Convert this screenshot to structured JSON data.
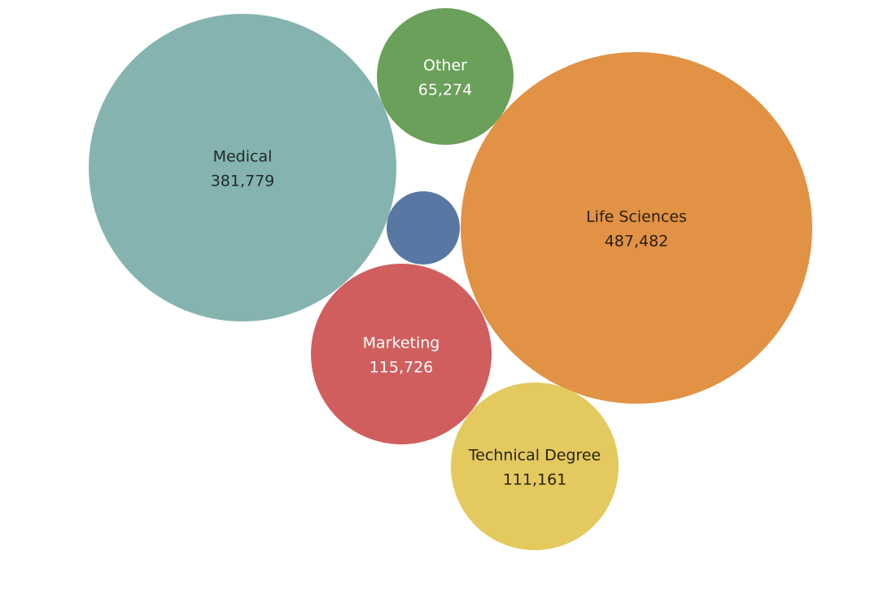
{
  "chart_data": {
    "type": "bubble",
    "title": "",
    "bubbles": [
      {
        "category": "Medical",
        "value": 381779,
        "value_label": "381,779",
        "color": "#85b4b0",
        "text_color": "#1f2a2a"
      },
      {
        "category": "Other",
        "value": 65274,
        "value_label": "65,274",
        "color": "#6aa05a",
        "text_color": "#ffffff"
      },
      {
        "category": "",
        "value": null,
        "value_label": "",
        "color": "#5877a3",
        "text_color": "#ffffff"
      },
      {
        "category": "Life Sciences",
        "value": 487482,
        "value_label": "487,482",
        "color": "#e29244",
        "text_color": "#2a1f12"
      },
      {
        "category": "Marketing",
        "value": 115726,
        "value_label": "115,726",
        "color": "#d15e5e",
        "text_color": "#ffffff"
      },
      {
        "category": "Technical Degree",
        "value": 111161,
        "value_label": "111,161",
        "color": "#e4c95e",
        "text_color": "#2a2412"
      }
    ]
  }
}
